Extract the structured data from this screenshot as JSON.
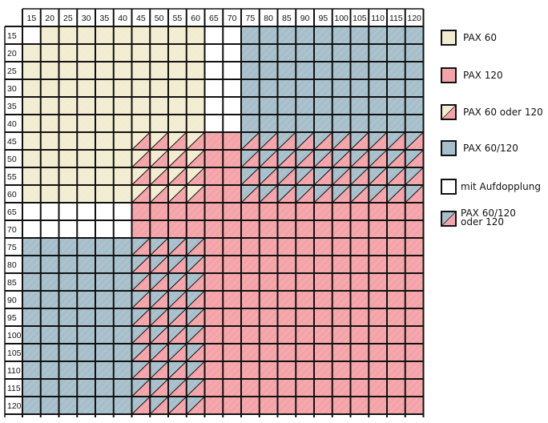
{
  "columns": [
    "15",
    "20",
    "25",
    "30",
    "35",
    "40",
    "45",
    "50",
    "55",
    "60",
    "65",
    "70",
    "75",
    "80",
    "85",
    "90",
    "95",
    "100",
    "105",
    "110",
    "115",
    "120"
  ],
  "rows": [
    "15",
    "20",
    "25",
    "30",
    "35",
    "40",
    "45",
    "50",
    "55",
    "60",
    "65",
    "70",
    "75",
    "80",
    "85",
    "90",
    "95",
    "100",
    "105",
    "110",
    "115",
    "120"
  ],
  "colors": {
    "pax60": "#f2ecd0",
    "pax120": "#f4a3a8",
    "pax60_120": "#a6bfcb",
    "mit_aufdopplung": "#ffffff",
    "grid_line": "#111111"
  },
  "cell_codes": {
    "W": "mit_aufdopplung",
    "Y": "pax60",
    "R": "pax120",
    "B": "pax60_120",
    "YR": "pax60_oder_120",
    "BR": "pax60_120_oder_120"
  },
  "regions": [
    {
      "rows": [
        "15",
        "15"
      ],
      "cols": [
        "15",
        "15"
      ],
      "code": "W"
    },
    {
      "rows": [
        "15",
        "60"
      ],
      "cols": [
        "20",
        "40"
      ],
      "code": "Y"
    },
    {
      "rows": [
        "20",
        "60"
      ],
      "cols": [
        "15",
        "15"
      ],
      "code": "Y"
    },
    {
      "rows": [
        "15",
        "40"
      ],
      "cols": [
        "45",
        "60"
      ],
      "code": "Y"
    },
    {
      "rows": [
        "15",
        "40"
      ],
      "cols": [
        "65",
        "70"
      ],
      "code": "W"
    },
    {
      "rows": [
        "15",
        "40"
      ],
      "cols": [
        "75",
        "120"
      ],
      "code": "B"
    },
    {
      "rows": [
        "45",
        "60"
      ],
      "cols": [
        "45",
        "60"
      ],
      "code": "YR"
    },
    {
      "rows": [
        "45",
        "60"
      ],
      "cols": [
        "65",
        "70"
      ],
      "code": "R"
    },
    {
      "rows": [
        "45",
        "60"
      ],
      "cols": [
        "75",
        "120"
      ],
      "code": "BR"
    },
    {
      "rows": [
        "65",
        "70"
      ],
      "cols": [
        "15",
        "40"
      ],
      "code": "W"
    },
    {
      "rows": [
        "65",
        "120"
      ],
      "cols": [
        "45",
        "120"
      ],
      "code": "R"
    },
    {
      "rows": [
        "75",
        "120"
      ],
      "cols": [
        "15",
        "40"
      ],
      "code": "B"
    },
    {
      "rows": [
        "75",
        "120"
      ],
      "cols": [
        "45",
        "60"
      ],
      "code": "BR"
    }
  ],
  "legend": [
    {
      "key": "pax60",
      "label": "PAX 60",
      "swatch": "Y"
    },
    {
      "key": "pax120",
      "label": "PAX 120",
      "swatch": "R"
    },
    {
      "key": "pax60_oder_120",
      "label": "PAX 60 oder 120",
      "swatch": "YR"
    },
    {
      "key": "pax60_120",
      "label": "PAX 60/120",
      "swatch": "B"
    },
    {
      "key": "mit_aufdopplung",
      "label": "mit Aufdopplung",
      "swatch": "W"
    },
    {
      "key": "pax60_120_oder_120",
      "label": "PAX 60/120\noder 120",
      "swatch": "BR"
    }
  ]
}
